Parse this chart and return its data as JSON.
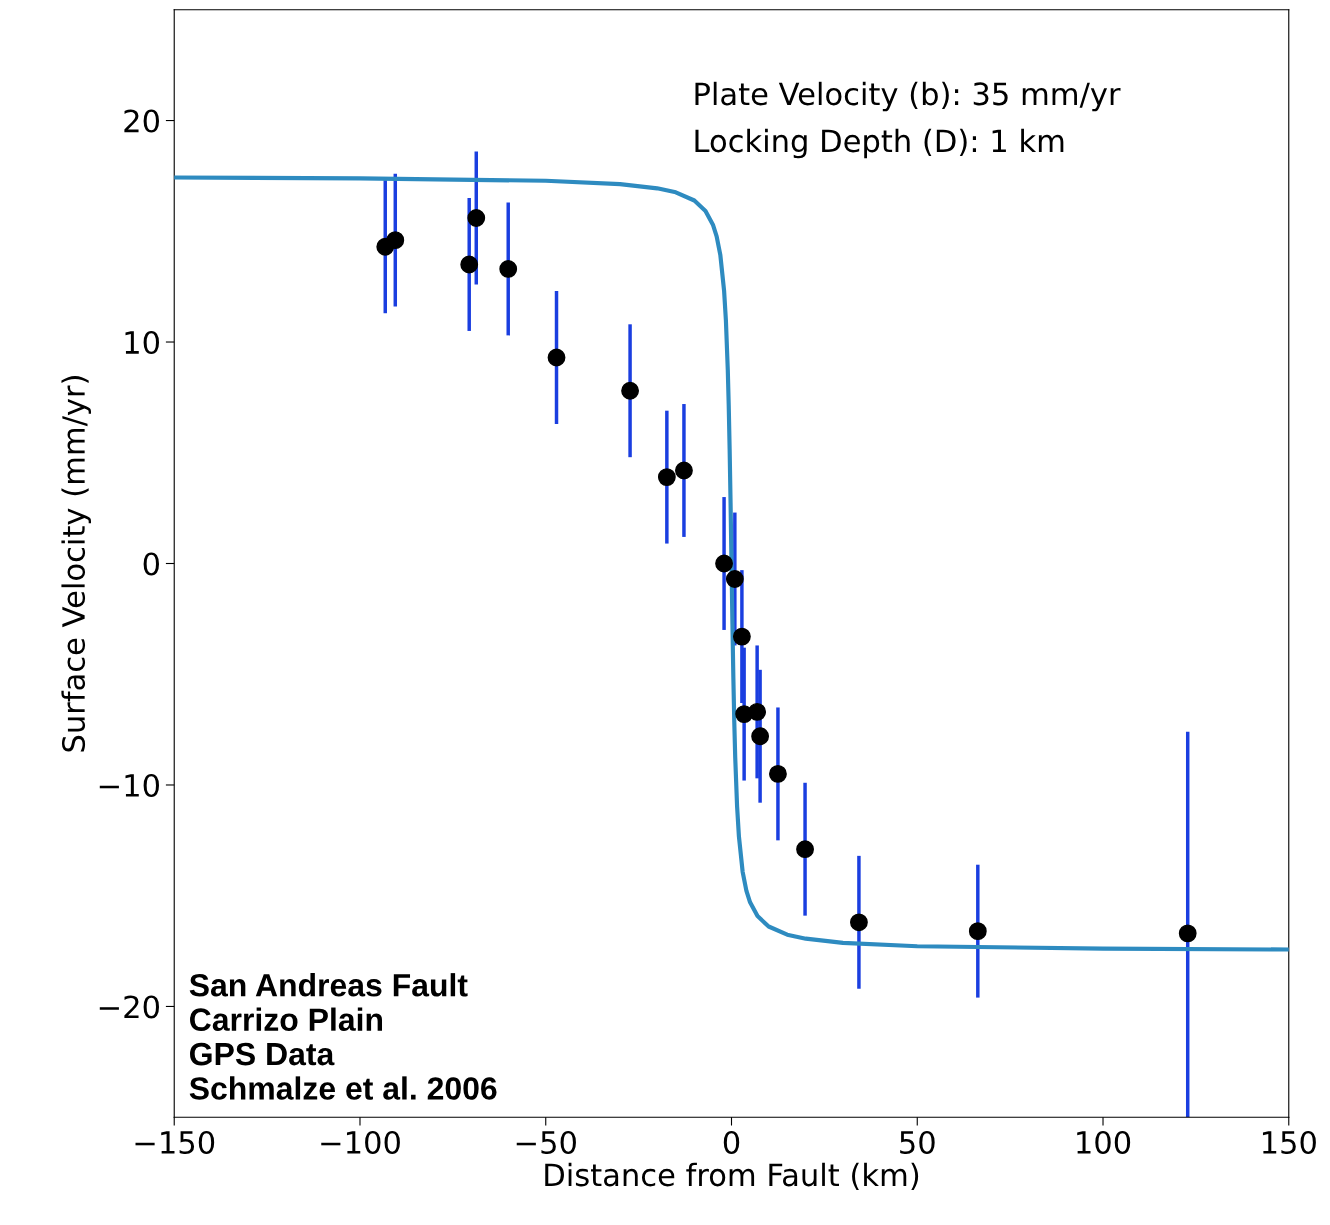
{
  "chart_data": {
    "type": "scatter",
    "xlabel": "Distance from Fault (km)",
    "ylabel": "Surface Velocity (mm/yr)",
    "xlim": [
      -150,
      150
    ],
    "ylim": [
      -25,
      25
    ],
    "xticks": [
      -150,
      -100,
      -50,
      0,
      50,
      100,
      150
    ],
    "yticks": [
      -20,
      -10,
      0,
      10,
      20
    ],
    "grid": false,
    "legend": false,
    "series": [
      {
        "type": "line",
        "marker": "none",
        "color": "#2e8bc0",
        "x": [
          -150,
          -100,
          -50,
          -30,
          -20,
          -15,
          -10,
          -7,
          -5,
          -4,
          -3,
          -2,
          -1.5,
          -1,
          -0.75,
          -0.5,
          -0.25,
          0,
          0.25,
          0.5,
          0.75,
          1,
          1.5,
          2,
          3,
          4,
          5,
          7,
          10,
          15,
          20,
          30,
          50,
          100,
          150
        ],
        "values": [
          17.43,
          17.39,
          17.28,
          17.13,
          16.94,
          16.76,
          16.39,
          15.92,
          15.3,
          14.77,
          13.92,
          12.33,
          10.95,
          8.75,
          7.17,
          5.16,
          2.73,
          0,
          -2.73,
          -5.16,
          -7.17,
          -8.75,
          -10.95,
          -12.33,
          -13.92,
          -14.77,
          -15.3,
          -15.92,
          -16.39,
          -16.76,
          -16.94,
          -17.13,
          -17.28,
          -17.39,
          -17.43
        ]
      },
      {
        "marker": "circle",
        "color": "#000000",
        "x": [
          -93.2,
          -90.5,
          -70.6,
          -68.7,
          -60.1,
          -47.1,
          -27.3,
          -17.4,
          -12.8,
          -2.0,
          0.9,
          2.8,
          3.4,
          6.9,
          7.7,
          12.5,
          19.8,
          34.3,
          66.3,
          122.8
        ],
        "values": [
          14.3,
          14.6,
          13.5,
          15.6,
          13.3,
          9.3,
          7.8,
          3.9,
          4.2,
          0.0,
          -0.7,
          -3.3,
          -6.8,
          -6.7,
          -7.8,
          -9.5,
          -12.9,
          -16.2,
          -16.6,
          -16.7
        ],
        "errors": [
          3,
          3,
          3,
          3,
          3,
          3,
          3,
          3,
          3,
          3,
          3,
          3,
          3,
          3,
          3,
          3,
          3,
          3,
          3,
          [
            -25,
            -7.6
          ]
        ]
      }
    ],
    "annotations": [
      "Plate Velocity (b): 35 mm/yr\nLocking Depth (D): 1 km",
      "San Andreas Fault\nCarrizo Plain\nGPS Data\nSchmalze et al. 2006"
    ]
  }
}
